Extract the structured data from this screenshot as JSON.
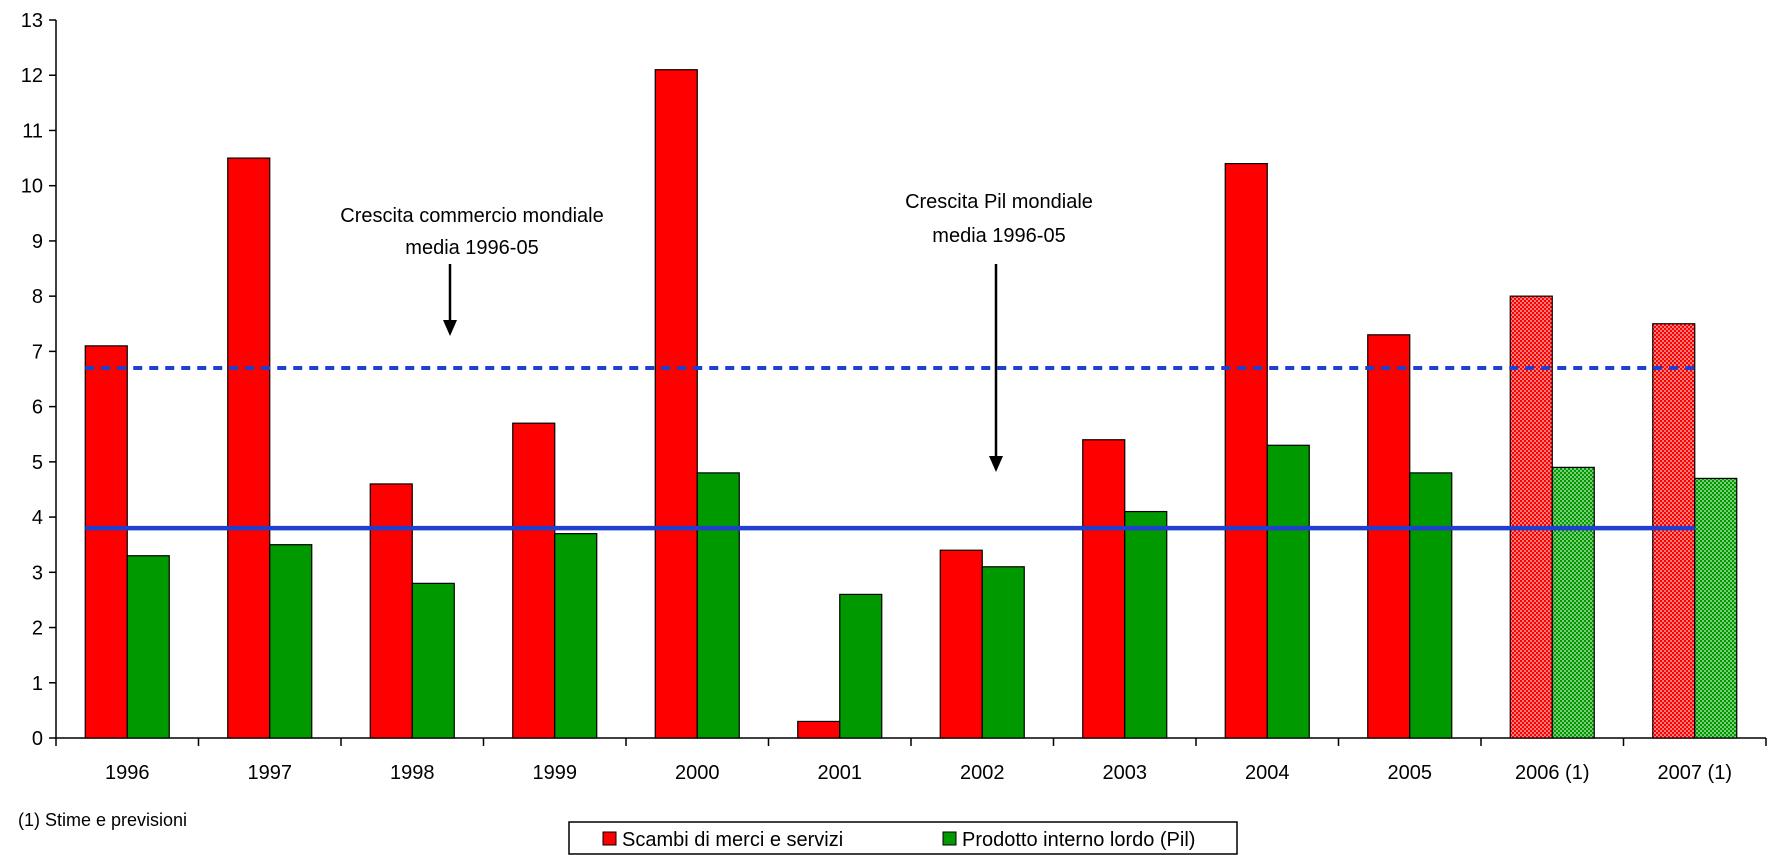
{
  "chart_data": {
    "type": "bar",
    "categories": [
      "1996",
      "1997",
      "1998",
      "1999",
      "2000",
      "2001",
      "2002",
      "2003",
      "2004",
      "2005",
      "2006 (1)",
      "2007 (1)"
    ],
    "series": [
      {
        "name": "Scambi di merci e servizi",
        "color": "#ff0000",
        "values": [
          7.1,
          10.5,
          4.6,
          5.7,
          12.1,
          0.3,
          3.4,
          5.4,
          10.4,
          7.3,
          8.0,
          7.5
        ],
        "estimated_from_index": 10
      },
      {
        "name": "Prodotto interno lordo (Pil)",
        "color": "#009900",
        "values": [
          3.3,
          3.5,
          2.8,
          3.7,
          4.8,
          2.6,
          3.1,
          4.1,
          5.3,
          4.8,
          4.9,
          4.7
        ],
        "estimated_from_index": 10
      }
    ],
    "reference_lines": [
      {
        "value": 6.7,
        "style": "dashed",
        "color": "#1f3fcc"
      },
      {
        "value": 3.8,
        "style": "solid",
        "color": "#1f3fcc"
      }
    ],
    "annotations": [
      {
        "lines": [
          "Crescita commercio mondiale",
          "media 1996-05"
        ],
        "points_to": 6.7
      },
      {
        "lines": [
          "Crescita Pil mondiale",
          "media 1996-05"
        ],
        "points_to": 3.8
      }
    ],
    "ylim": [
      0,
      13
    ],
    "yticks": [
      0,
      1,
      2,
      3,
      4,
      5,
      6,
      7,
      8,
      9,
      10,
      11,
      12,
      13
    ],
    "grid": false,
    "legend_position": "bottom-center",
    "footnote": "(1) Stime e previsioni"
  }
}
